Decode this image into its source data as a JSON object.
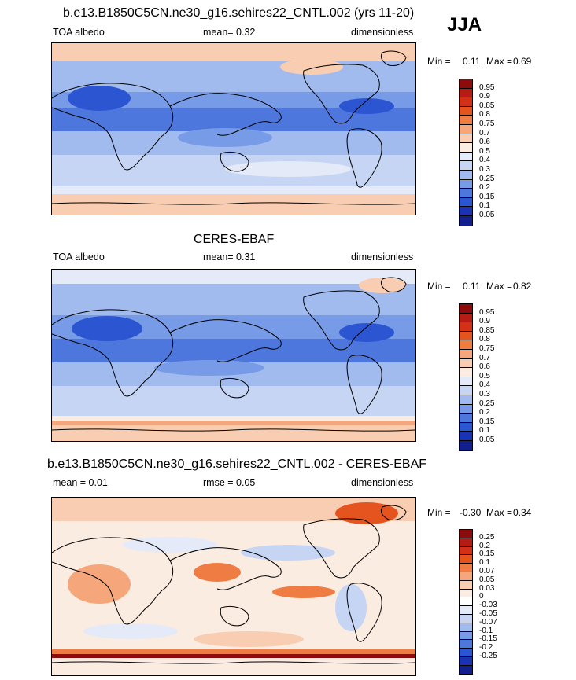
{
  "season": "JJA",
  "panels": [
    {
      "id": "model",
      "title": "b.e13.B1850C5CN.ne30_g16.sehires22_CNTL.002 (yrs 11-20)",
      "left_label": "TOA albedo",
      "center_label": "mean=  0.32",
      "right_label": "dimensionless",
      "min_label": "Min =",
      "min_value": "0.11",
      "max_label": "Max =",
      "max_value": "0.69",
      "colorbar_labels": [
        "0.95",
        "0.9",
        "0.85",
        "0.8",
        "0.75",
        "0.7",
        "0.6",
        "0.5",
        "0.4",
        "0.3",
        "0.25",
        "0.2",
        "0.15",
        "0.1",
        "0.05"
      ]
    },
    {
      "id": "obs",
      "title": "CERES-EBAF",
      "left_label": "TOA albedo",
      "center_label": "mean=  0.31",
      "right_label": "dimensionless",
      "min_label": "Min =",
      "min_value": "0.11",
      "max_label": "Max =",
      "max_value": "0.82",
      "colorbar_labels": [
        "0.95",
        "0.9",
        "0.85",
        "0.8",
        "0.75",
        "0.7",
        "0.6",
        "0.5",
        "0.4",
        "0.3",
        "0.25",
        "0.2",
        "0.15",
        "0.1",
        "0.05"
      ]
    },
    {
      "id": "diff",
      "title": "b.e13.B1850C5CN.ne30_g16.sehires22_CNTL.002 - CERES-EBAF",
      "left_label": "mean =  0.01",
      "center_label": "rmse =  0.05",
      "right_label": "dimensionless",
      "min_label": "Min =",
      "min_value": "-0.30",
      "max_label": "Max =",
      "max_value": "0.34",
      "colorbar_labels": [
        "0.25",
        "0.2",
        "0.15",
        "0.1",
        "0.07",
        "0.05",
        "0.03",
        "0",
        "-0.03",
        "-0.05",
        "-0.07",
        "-0.1",
        "-0.15",
        "-0.2",
        "-0.25"
      ]
    }
  ],
  "colors": {
    "seq": [
      "#8e0b0b",
      "#b51c14",
      "#d23117",
      "#e5541f",
      "#ef7d43",
      "#f5a77b",
      "#f9cdb1",
      "#fbece2",
      "#e4eaf8",
      "#c6d5f3",
      "#a1bbee",
      "#779be6",
      "#4e77de",
      "#2c55d2",
      "#1a32b4",
      "#121f8c"
    ],
    "div": [
      "#8e0b0b",
      "#b51c14",
      "#d23117",
      "#e5541f",
      "#ef7d43",
      "#f5a77b",
      "#f9cdb1",
      "#fbece2",
      "#ffffff",
      "#e4eaf8",
      "#c6d5f3",
      "#a1bbee",
      "#779be6",
      "#4e77de",
      "#2c55d2",
      "#1a32b4",
      "#121f8c"
    ]
  }
}
